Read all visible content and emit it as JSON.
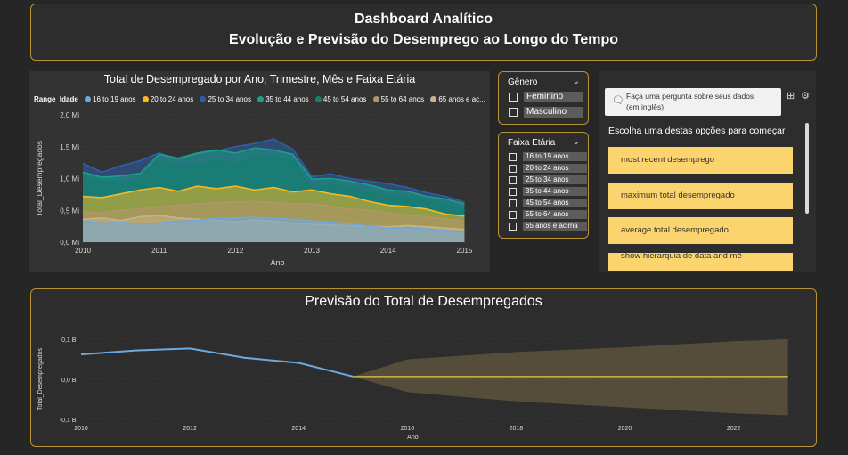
{
  "header": {
    "title": "Dashboard Analítico",
    "subtitle": "Evolução e Previsão do Desemprego ao Longo do Tempo"
  },
  "area_chart": {
    "title": "Total de Desempregado por Ano, Trimestre, Mês e Faixa Etária",
    "legend_title": "Range_Idade",
    "legend": [
      {
        "label": "16 to 19 anos",
        "color": "#6ca9e0"
      },
      {
        "label": "20 to 24 anos",
        "color": "#f6b921"
      },
      {
        "label": "25 to 34 anos",
        "color": "#2d5fa8"
      },
      {
        "label": "35 to 44 anos",
        "color": "#1aa187"
      },
      {
        "label": "45 to 54 anos",
        "color": "#12806e"
      },
      {
        "label": "55 to 64 anos",
        "color": "#b5936c"
      },
      {
        "label": "65 anos e ac...",
        "color": "#c9b287"
      }
    ]
  },
  "genero_slicer": {
    "title": "Gênero",
    "options": [
      "Feminino",
      "Masculino"
    ]
  },
  "faixa_slicer": {
    "title": "Faixa Etária",
    "options": [
      "16 to 19 anos",
      "20 to 24 anos",
      "25 to 34 anos",
      "35 to 44 anos",
      "45 to 54 anos",
      "55 to 64 anos",
      "65 anos e acima"
    ]
  },
  "qa": {
    "placeholder": "Faça uma pergunta sobre seus dados (em inglês)",
    "prompt": "Escolha uma destas opções para começar",
    "suggestions": [
      "most recent desemprego",
      "maximum total desempregado",
      "average total desempregado",
      "show hierarquia de data and mê"
    ]
  },
  "forecast": {
    "title": "Previsão do Total de Desempregados"
  },
  "chart_data": [
    {
      "type": "area",
      "title": "Total de Desempregado por Ano, Trimestre, Mês e Faixa Etária",
      "xlabel": "Ano",
      "ylabel": "Total_Desempregados",
      "x_ticks": [
        "2010",
        "2011",
        "2012",
        "2013",
        "2014",
        "2015"
      ],
      "y_ticks": [
        "0,0 Mi",
        "0,5 Mi",
        "1,0 Mi",
        "1,5 Mi",
        "2,0 Mi"
      ],
      "xlim": [
        2010,
        2015.1
      ],
      "ylim": [
        0,
        2.0
      ],
      "unit": "Mi",
      "legend_title": "Range_Idade",
      "legend_position": "top",
      "x": [
        2010.0,
        2010.25,
        2010.5,
        2010.75,
        2011.0,
        2011.25,
        2011.5,
        2011.75,
        2012.0,
        2012.25,
        2012.5,
        2012.75,
        2013.0,
        2013.25,
        2013.5,
        2013.75,
        2014.0,
        2014.25,
        2014.5,
        2014.75,
        2015.0
      ],
      "series": [
        {
          "name": "16 to 19 anos",
          "values": [
            0.33,
            0.3,
            0.31,
            0.29,
            0.3,
            0.33,
            0.34,
            0.37,
            0.38,
            0.39,
            0.37,
            0.36,
            0.33,
            0.31,
            0.29,
            0.25,
            0.22,
            0.23,
            0.21,
            0.18,
            0.17
          ]
        },
        {
          "name": "20 to 24 anos",
          "values": [
            0.72,
            0.7,
            0.76,
            0.82,
            0.86,
            0.8,
            0.88,
            0.84,
            0.88,
            0.82,
            0.86,
            0.79,
            0.82,
            0.76,
            0.72,
            0.64,
            0.58,
            0.56,
            0.52,
            0.44,
            0.41
          ]
        },
        {
          "name": "25 to 34 anos",
          "values": [
            1.24,
            1.1,
            1.2,
            1.28,
            1.4,
            1.3,
            1.39,
            1.43,
            1.5,
            1.55,
            1.62,
            1.46,
            1.03,
            1.07,
            1.0,
            0.96,
            0.92,
            0.86,
            0.78,
            0.72,
            0.63
          ]
        },
        {
          "name": "35 to 44 anos",
          "values": [
            1.1,
            1.02,
            1.04,
            1.08,
            1.38,
            1.32,
            1.4,
            1.45,
            1.4,
            1.48,
            1.45,
            1.38,
            0.99,
            1.0,
            0.96,
            0.9,
            0.82,
            0.8,
            0.72,
            0.68,
            0.6
          ]
        },
        {
          "name": "45 to 54 anos",
          "values": [
            1.0,
            0.96,
            0.92,
            0.98,
            1.28,
            1.18,
            1.2,
            1.3,
            1.2,
            1.36,
            1.32,
            1.28,
            0.84,
            0.9,
            0.82,
            0.78,
            0.72,
            0.7,
            0.64,
            0.58,
            0.52
          ]
        },
        {
          "name": "55 to 64 anos",
          "values": [
            0.48,
            0.46,
            0.5,
            0.52,
            0.55,
            0.58,
            0.6,
            0.62,
            0.63,
            0.64,
            0.62,
            0.6,
            0.6,
            0.56,
            0.52,
            0.5,
            0.46,
            0.42,
            0.4,
            0.36,
            0.33
          ]
        },
        {
          "name": "65 anos e acima",
          "values": [
            0.36,
            0.38,
            0.34,
            0.4,
            0.42,
            0.38,
            0.36,
            0.34,
            0.32,
            0.35,
            0.33,
            0.3,
            0.28,
            0.27,
            0.26,
            0.25,
            0.24,
            0.26,
            0.24,
            0.22,
            0.2
          ]
        }
      ]
    },
    {
      "type": "line",
      "title": "Previsão do Total de Desempregados",
      "xlabel": "Ano",
      "ylabel": "Total_Desempregados",
      "x_ticks": [
        "2010",
        "2012",
        "2014",
        "2016",
        "2018",
        "2020",
        "2022"
      ],
      "y_ticks": [
        "-0,1 Bi",
        "0,0 Bi",
        "0,1 Bi"
      ],
      "xlim": [
        2010,
        2023.3
      ],
      "ylim": [
        -0.1,
        0.1
      ],
      "unit": "Bi",
      "actual": {
        "x": [
          2010,
          2011,
          2012,
          2013,
          2014,
          2015
        ],
        "values": [
          0.062,
          0.072,
          0.077,
          0.054,
          0.041,
          0.007
        ]
      },
      "forecast": {
        "x": [
          2015,
          2016,
          2018,
          2020,
          2022,
          2023
        ],
        "values": [
          0.007,
          0.007,
          0.007,
          0.007,
          0.007,
          0.007
        ]
      },
      "upper": {
        "x": [
          2015,
          2016,
          2018,
          2020,
          2022,
          2023
        ],
        "values": [
          0.007,
          0.05,
          0.068,
          0.08,
          0.095,
          0.1
        ]
      },
      "lower": {
        "x": [
          2015,
          2016,
          2018,
          2020,
          2022,
          2023
        ],
        "values": [
          0.007,
          -0.032,
          -0.055,
          -0.07,
          -0.085,
          -0.09
        ]
      }
    }
  ]
}
